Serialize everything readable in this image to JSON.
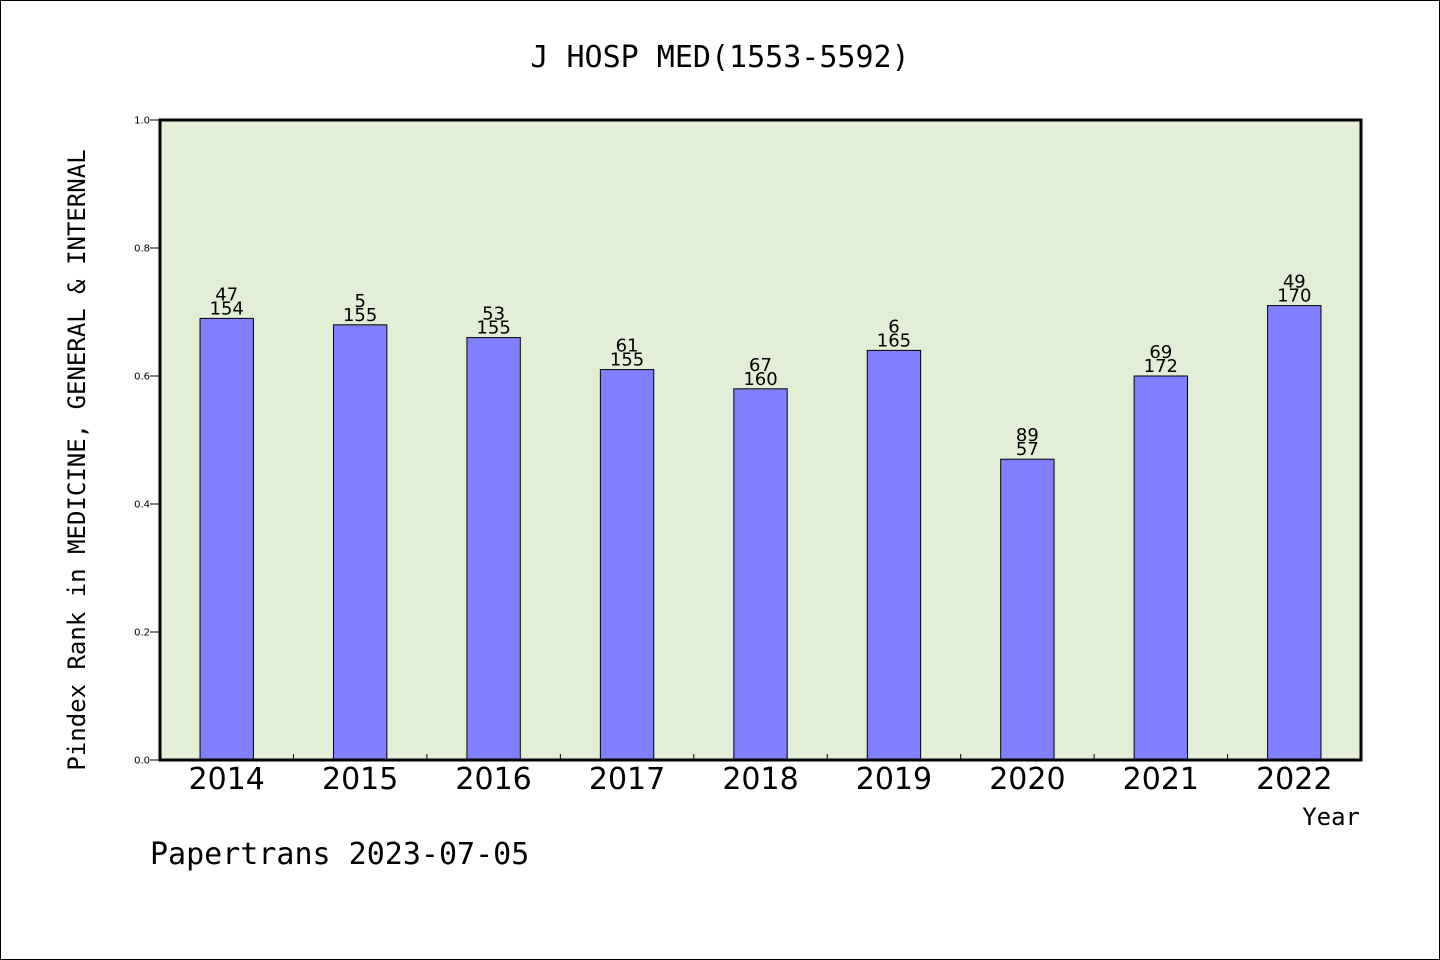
{
  "chart_data": {
    "type": "bar",
    "title": "J HOSP MED(1553-5592)",
    "xlabel": "Year",
    "ylabel": "Pindex Rank in MEDICINE, GENERAL & INTERNAL",
    "categories": [
      "2014",
      "2015",
      "2016",
      "2017",
      "2018",
      "2019",
      "2020",
      "2021",
      "2022"
    ],
    "values": [
      0.69,
      0.68,
      0.66,
      0.61,
      0.58,
      0.64,
      0.47,
      0.6,
      0.71
    ],
    "rank_labels": [
      "47",
      "5",
      "53",
      "61",
      "67",
      "6",
      "89",
      "69",
      "49"
    ],
    "total_labels": [
      "154",
      "155",
      "155",
      "155",
      "160",
      "165",
      "57",
      "172",
      "170"
    ],
    "ylim": [
      0,
      1.0
    ],
    "yticks": [
      "0.0",
      "0.2",
      "0.4",
      "0.6",
      "0.8",
      "1.0"
    ],
    "grid": false,
    "colors": {
      "plot_background": "#e2efd6",
      "bar_fill": "#8080ff",
      "bar_stroke": "#000000"
    }
  },
  "footer": {
    "text": "Papertrans 2023-07-05"
  }
}
